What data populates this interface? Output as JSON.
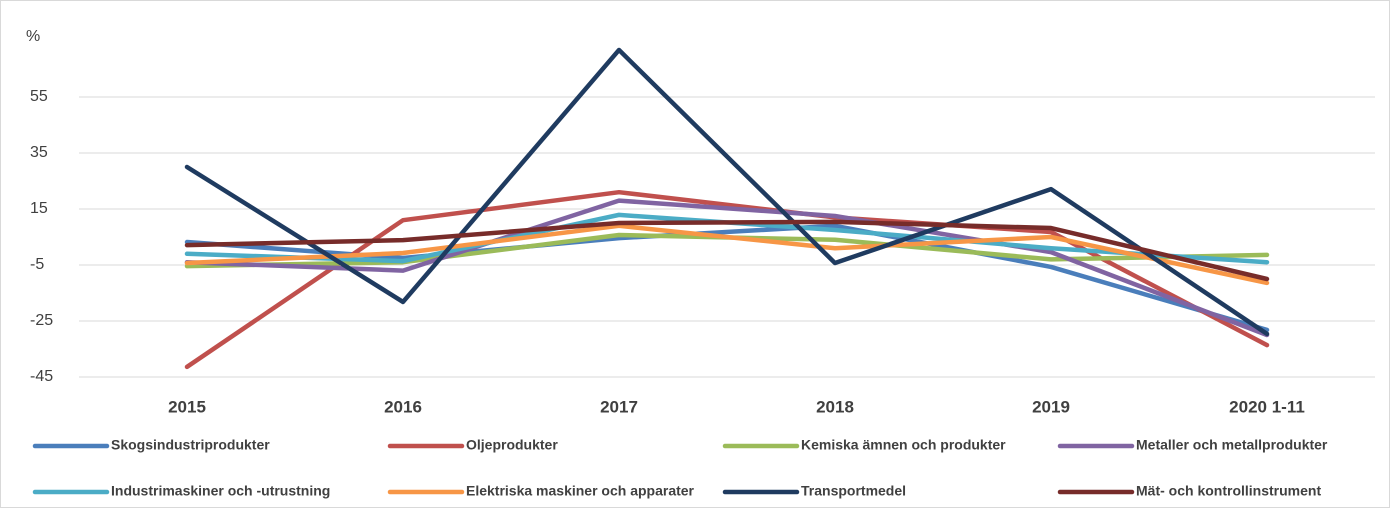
{
  "chart_data": {
    "type": "line",
    "y_label": "%",
    "categories": [
      "2015",
      "2016",
      "2017",
      "2018",
      "2019",
      "2020 1-11"
    ],
    "ylim": [
      -45,
      75
    ],
    "yticks": [
      -45,
      -25,
      -5,
      15,
      35,
      55
    ],
    "grid": true,
    "legend": "bottom",
    "series": [
      {
        "name": "Skogsindustriprodukter",
        "color": "#4a7ebb",
        "values": [
          3.2,
          -2.5,
          4.6,
          9,
          -5.7,
          -28.2
        ]
      },
      {
        "name": "Oljeprodukter",
        "color": "#c0504d",
        "values": [
          -41.4,
          11,
          21,
          12,
          6.8,
          -33.6
        ]
      },
      {
        "name": "Kemiska ämnen och produkter",
        "color": "#9bbb59",
        "values": [
          -5.4,
          -4,
          5.7,
          4,
          -3,
          -1.4
        ]
      },
      {
        "name": "Metaller och metallprodukter",
        "color": "#8064a2",
        "values": [
          -4,
          -7,
          18,
          12.5,
          -0.4,
          -30
        ]
      },
      {
        "name": "Industrimaskiner och -utrustning",
        "color": "#4bacc6",
        "values": [
          -1,
          -3.6,
          12.9,
          7.5,
          1,
          -4
        ]
      },
      {
        "name": "Elektriska maskiner och apparater",
        "color": "#f79646",
        "values": [
          -4.3,
          -0.7,
          9,
          1,
          5,
          -11.4
        ]
      },
      {
        "name": "Transportmedel",
        "color": "#1f3b60",
        "values": [
          30,
          -18.2,
          71.8,
          -4.3,
          22.1,
          -29.6
        ]
      },
      {
        "name": "Mät- och kontrollinstrument",
        "color": "#772c2a",
        "values": [
          2.1,
          3.9,
          10,
          10.4,
          8.2,
          -10
        ]
      }
    ]
  }
}
